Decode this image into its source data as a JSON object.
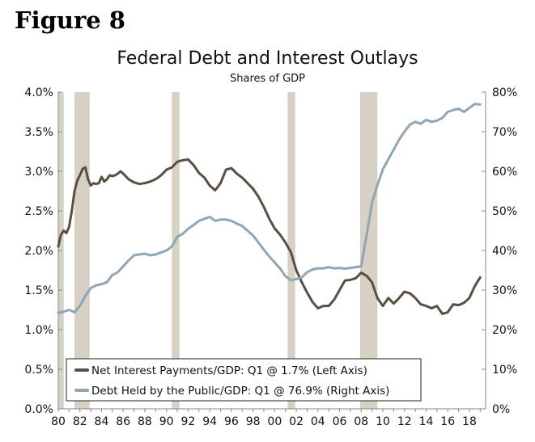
{
  "figure_label": "Figure 8",
  "colors": {
    "recession": "#d6d1c4",
    "interest": "#5a4e42",
    "debt": "#8fa6b5",
    "axis": "#888888"
  },
  "chart_data": {
    "type": "line",
    "title": "Federal Debt and Interest Outlays",
    "subtitle": "Shares of GDP",
    "x_range": [
      1980,
      2019.5
    ],
    "x_ticks": [
      1980,
      1982,
      1984,
      1986,
      1988,
      1990,
      1992,
      1994,
      1996,
      1998,
      2000,
      2002,
      2004,
      2006,
      2008,
      2010,
      2012,
      2014,
      2016,
      2018
    ],
    "x_tick_labels": [
      "80",
      "82",
      "84",
      "86",
      "88",
      "90",
      "92",
      "94",
      "96",
      "98",
      "00",
      "02",
      "04",
      "06",
      "08",
      "10",
      "12",
      "14",
      "16",
      "18"
    ],
    "left_axis": {
      "ylim": [
        0,
        4.0
      ],
      "ticks": [
        0,
        0.5,
        1.0,
        1.5,
        2.0,
        2.5,
        3.0,
        3.5,
        4.0
      ],
      "tick_labels": [
        "0.0%",
        "0.5%",
        "1.0%",
        "1.5%",
        "2.0%",
        "2.5%",
        "3.0%",
        "3.5%",
        "4.0%"
      ]
    },
    "right_axis": {
      "ylim": [
        0,
        80
      ],
      "ticks": [
        0,
        10,
        20,
        30,
        40,
        50,
        60,
        70,
        80
      ],
      "tick_labels": [
        "0%",
        "10%",
        "20%",
        "30%",
        "40%",
        "50%",
        "60%",
        "70%",
        "80%"
      ]
    },
    "recessions": [
      {
        "start": 1980.0,
        "end": 1980.5
      },
      {
        "start": 1981.5,
        "end": 1982.9
      },
      {
        "start": 1990.5,
        "end": 1991.2
      },
      {
        "start": 2001.2,
        "end": 2001.9
      },
      {
        "start": 2007.9,
        "end": 2009.5
      }
    ],
    "series": [
      {
        "name": "Net Interest Payments/GDP: Q1 @ 1.7% (Left Axis)",
        "axis": "left",
        "x": [
          1980.0,
          1980.25,
          1980.5,
          1980.75,
          1981.0,
          1981.25,
          1981.5,
          1981.75,
          1982.0,
          1982.25,
          1982.5,
          1982.75,
          1983.0,
          1983.25,
          1983.5,
          1983.75,
          1984.0,
          1984.25,
          1984.5,
          1984.75,
          1985.0,
          1985.25,
          1985.5,
          1985.75,
          1986.0,
          1986.5,
          1987.0,
          1987.5,
          1988.0,
          1988.5,
          1989.0,
          1989.5,
          1990.0,
          1990.5,
          1991.0,
          1991.5,
          1992.0,
          1992.5,
          1993.0,
          1993.5,
          1994.0,
          1994.5,
          1995.0,
          1995.5,
          1996.0,
          1996.5,
          1997.0,
          1997.5,
          1998.0,
          1998.5,
          1999.0,
          1999.5,
          2000.0,
          2000.5,
          2001.0,
          2001.5,
          2002.0,
          2002.5,
          2003.0,
          2003.5,
          2004.0,
          2004.5,
          2005.0,
          2005.5,
          2006.0,
          2006.5,
          2007.0,
          2007.5,
          2008.0,
          2008.5,
          2009.0,
          2009.5,
          2010.0,
          2010.5,
          2011.0,
          2011.5,
          2012.0,
          2012.5,
          2013.0,
          2013.5,
          2014.0,
          2014.5,
          2015.0,
          2015.5,
          2016.0,
          2016.5,
          2017.0,
          2017.5,
          2018.0,
          2018.5,
          2019.0
        ],
        "values": [
          2.05,
          2.2,
          2.25,
          2.22,
          2.3,
          2.5,
          2.75,
          2.88,
          2.95,
          3.03,
          3.05,
          2.9,
          2.82,
          2.85,
          2.84,
          2.85,
          2.93,
          2.87,
          2.9,
          2.95,
          2.94,
          2.95,
          2.97,
          3.0,
          2.97,
          2.9,
          2.86,
          2.84,
          2.85,
          2.87,
          2.9,
          2.95,
          3.02,
          3.05,
          3.12,
          3.14,
          3.15,
          3.08,
          2.98,
          2.92,
          2.82,
          2.76,
          2.85,
          3.02,
          3.04,
          2.97,
          2.92,
          2.85,
          2.78,
          2.68,
          2.55,
          2.4,
          2.28,
          2.2,
          2.1,
          1.98,
          1.75,
          1.6,
          1.47,
          1.35,
          1.27,
          1.3,
          1.3,
          1.38,
          1.5,
          1.62,
          1.63,
          1.65,
          1.72,
          1.68,
          1.6,
          1.4,
          1.3,
          1.4,
          1.33,
          1.4,
          1.48,
          1.46,
          1.4,
          1.32,
          1.3,
          1.27,
          1.3,
          1.2,
          1.22,
          1.32,
          1.31,
          1.34,
          1.4,
          1.55,
          1.66
        ]
      },
      {
        "name": "Debt Held by the Public/GDP: Q1 @ 76.9% (Right Axis)",
        "axis": "right",
        "x": [
          1980.0,
          1980.5,
          1981.0,
          1981.5,
          1982.0,
          1982.5,
          1983.0,
          1983.5,
          1984.0,
          1984.5,
          1985.0,
          1985.5,
          1986.0,
          1986.5,
          1987.0,
          1987.5,
          1988.0,
          1988.5,
          1989.0,
          1989.5,
          1990.0,
          1990.5,
          1991.0,
          1991.5,
          1992.0,
          1992.5,
          1993.0,
          1993.5,
          1994.0,
          1994.5,
          1995.0,
          1995.5,
          1996.0,
          1996.5,
          1997.0,
          1997.5,
          1998.0,
          1998.5,
          1999.0,
          1999.5,
          2000.0,
          2000.5,
          2001.0,
          2001.5,
          2002.0,
          2002.5,
          2003.0,
          2003.5,
          2004.0,
          2004.5,
          2005.0,
          2005.5,
          2006.0,
          2006.5,
          2007.0,
          2007.5,
          2008.0,
          2008.5,
          2009.0,
          2009.5,
          2010.0,
          2010.5,
          2011.0,
          2011.5,
          2012.0,
          2012.5,
          2013.0,
          2013.5,
          2014.0,
          2014.5,
          2015.0,
          2015.5,
          2016.0,
          2016.5,
          2017.0,
          2017.5,
          2018.0,
          2018.5,
          2019.0
        ],
        "values": [
          24.3,
          24.5,
          25.0,
          24.4,
          26.0,
          28.5,
          30.5,
          31.2,
          31.5,
          32.0,
          33.8,
          34.5,
          36.0,
          37.5,
          38.8,
          39.0,
          39.2,
          38.8,
          39.0,
          39.5,
          40.0,
          41.0,
          43.5,
          44.2,
          45.5,
          46.4,
          47.5,
          48.0,
          48.5,
          47.5,
          47.8,
          47.8,
          47.5,
          46.8,
          46.2,
          45.0,
          43.8,
          42.0,
          40.2,
          38.5,
          37.0,
          35.5,
          33.5,
          32.5,
          32.8,
          33.2,
          34.5,
          35.2,
          35.5,
          35.5,
          35.8,
          35.5,
          35.6,
          35.4,
          35.6,
          35.8,
          36.0,
          44.0,
          52.0,
          56.5,
          60.5,
          63.0,
          65.5,
          68.0,
          70.0,
          71.8,
          72.5,
          72.0,
          73.0,
          72.5,
          72.8,
          73.5,
          75.0,
          75.5,
          75.8,
          75.0,
          76.0,
          77.0,
          76.9
        ]
      }
    ]
  }
}
